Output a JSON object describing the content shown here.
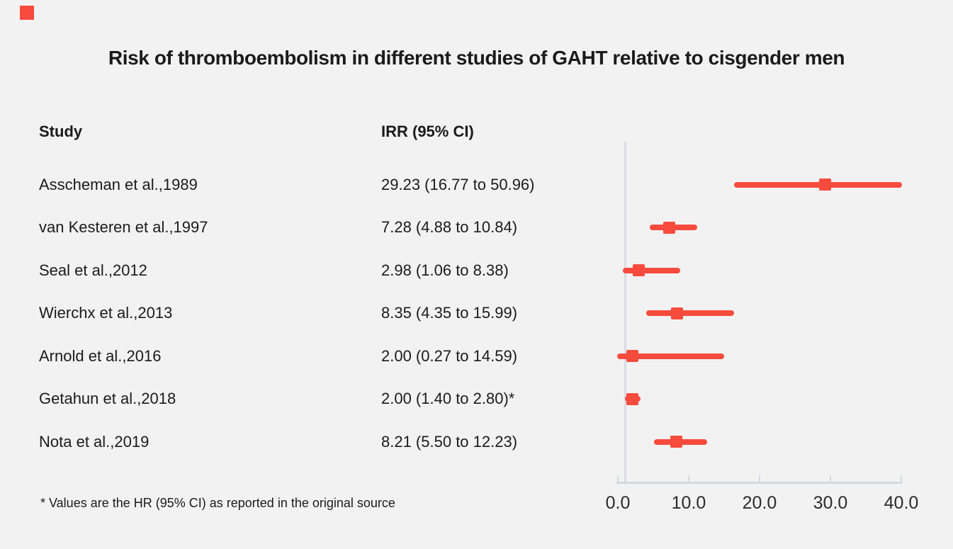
{
  "title": "Risk of thromboembolism in different studies of GAHT relative to cisgender men",
  "columns": {
    "study": "Study",
    "irr": "IRR (95% CI)"
  },
  "footnote": "* Values are the HR (95% CI) as reported in the original source",
  "colors": {
    "accent_red": "#f74b3e",
    "axis_gray": "#d3d9e0",
    "null_line_gray": "#d8dde3",
    "background": "#f2f2f2",
    "text": "#1b1b1b"
  },
  "chart_data": {
    "type": "forest",
    "title": "Risk of thromboembolism in different studies of GAHT relative to cisgender men",
    "xlabel": "",
    "ylabel": "",
    "xlim": [
      0,
      40
    ],
    "x_ticks": [
      0,
      10,
      20,
      30,
      40
    ],
    "x_tick_labels": [
      "0.0",
      "10.0",
      "20.0",
      "30.0",
      "40.0"
    ],
    "null_line_value": 1,
    "grid": false,
    "legend": false,
    "studies": [
      {
        "label": "Asscheman et al.,1989",
        "irr_text": "29.23 (16.77 to 50.96)",
        "irr": 29.23,
        "ci_low": 16.77,
        "ci_high": 50.96
      },
      {
        "label": "van Kesteren et al.,1997",
        "irr_text": "7.28 (4.88 to 10.84)",
        "irr": 7.28,
        "ci_low": 4.88,
        "ci_high": 10.84
      },
      {
        "label": "Seal et al.,2012",
        "irr_text": "2.98 (1.06 to 8.38)",
        "irr": 2.98,
        "ci_low": 1.06,
        "ci_high": 8.38
      },
      {
        "label": "Wierchx et al.,2013",
        "irr_text": "8.35 (4.35 to 15.99)",
        "irr": 8.35,
        "ci_low": 4.35,
        "ci_high": 15.99
      },
      {
        "label": "Arnold et al.,2016",
        "irr_text": "2.00 (0.27 to 14.59)",
        "irr": 2.0,
        "ci_low": 0.27,
        "ci_high": 14.59
      },
      {
        "label": "Getahun et al.,2018",
        "irr_text": "2.00 (1.40 to 2.80)*",
        "irr": 2.0,
        "ci_low": 1.4,
        "ci_high": 2.8
      },
      {
        "label": "Nota et al.,2019",
        "irr_text": "8.21 (5.50 to 12.23)",
        "irr": 8.21,
        "ci_low": 5.5,
        "ci_high": 12.23
      }
    ]
  }
}
